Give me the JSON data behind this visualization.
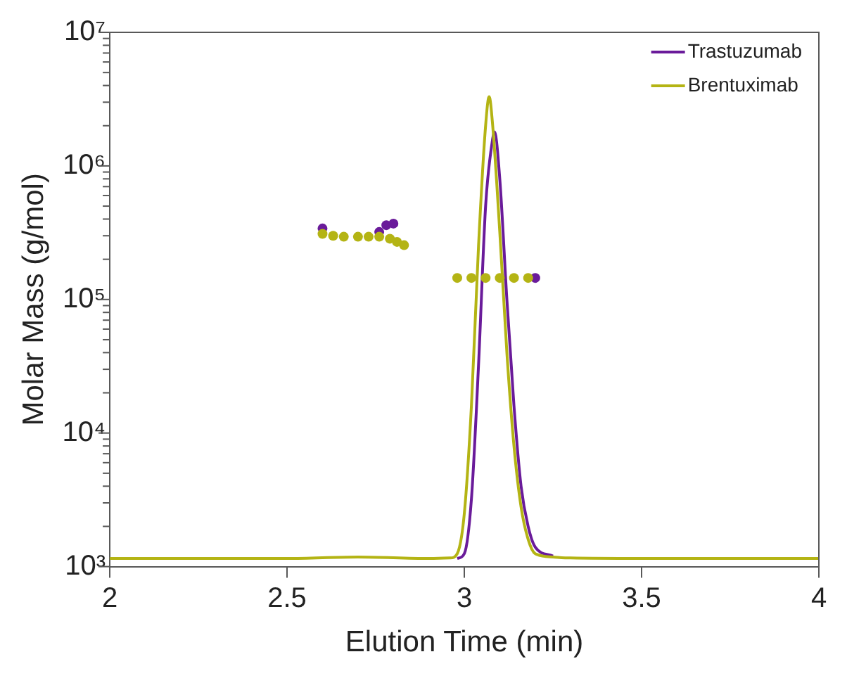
{
  "chart_data": {
    "type": "line",
    "xlabel": "Elution Time (min)",
    "ylabel": "Molar Mass (g/mol)",
    "log": "y",
    "xlim": [
      2,
      4
    ],
    "xticks": [
      2,
      2.5,
      3,
      3.5,
      4
    ],
    "ylim": [
      1000,
      10000000
    ],
    "yticks": [
      {
        "value": 1000,
        "label": "10³"
      },
      {
        "value": 2000,
        "label": null
      },
      {
        "value": 3000,
        "label": null
      },
      {
        "value": 4000,
        "label": null
      },
      {
        "value": 5000,
        "label": null
      },
      {
        "value": 6000,
        "label": null
      },
      {
        "value": 7000,
        "label": null
      },
      {
        "value": 8000,
        "label": null
      },
      {
        "value": 9000,
        "label": null
      },
      {
        "value": 10000,
        "label": "10⁴"
      },
      {
        "value": 20000,
        "label": null
      },
      {
        "value": 30000,
        "label": null
      },
      {
        "value": 40000,
        "label": null
      },
      {
        "value": 50000,
        "label": null
      },
      {
        "value": 60000,
        "label": null
      },
      {
        "value": 70000,
        "label": null
      },
      {
        "value": 80000,
        "label": null
      },
      {
        "value": 90000,
        "label": null
      },
      {
        "value": 100000,
        "label": "10⁵"
      },
      {
        "value": 200000,
        "label": null
      },
      {
        "value": 300000,
        "label": null
      },
      {
        "value": 400000,
        "label": null
      },
      {
        "value": 500000,
        "label": null
      },
      {
        "value": 600000,
        "label": null
      },
      {
        "value": 700000,
        "label": null
      },
      {
        "value": 800000,
        "label": null
      },
      {
        "value": 900000,
        "label": null
      },
      {
        "value": 1000000,
        "label": "10⁶"
      },
      {
        "value": 2000000,
        "label": null
      },
      {
        "value": 3000000,
        "label": null
      },
      {
        "value": 4000000,
        "label": null
      },
      {
        "value": 5000000,
        "label": null
      },
      {
        "value": 6000000,
        "label": null
      },
      {
        "value": 7000000,
        "label": null
      },
      {
        "value": 8000000,
        "label": null
      },
      {
        "value": 9000000,
        "label": null
      },
      {
        "value": 10000000,
        "label": "10⁷"
      }
    ],
    "grid": false,
    "legend": "top right",
    "series": [
      {
        "name": "Trastuzumab",
        "type": "line",
        "color": "#6a1b9a",
        "x": [
          2.98,
          3.0,
          3.02,
          3.04,
          3.06,
          3.08,
          3.085,
          3.1,
          3.12,
          3.14,
          3.16,
          3.18,
          3.2,
          3.25
        ],
        "values": [
          1150,
          1250,
          3200,
          32000,
          500000,
          1600000,
          1800000,
          800000,
          100000,
          16000,
          4000,
          2000,
          1400,
          1200
        ]
      },
      {
        "name": "Brentuximab",
        "type": "line",
        "color": "#b4b414",
        "x": [
          2,
          2.5,
          2.7,
          2.9,
          2.96,
          2.98,
          3.0,
          3.02,
          3.04,
          3.06,
          3.07,
          3.08,
          3.1,
          3.12,
          3.14,
          3.16,
          3.18,
          3.2,
          3.25,
          3.3,
          3.5,
          4
        ],
        "values": [
          1150,
          1150,
          1180,
          1150,
          1160,
          1250,
          2500,
          16000,
          250000,
          2000000,
          3300000,
          2000000,
          320000,
          40000,
          8000,
          2800,
          1600,
          1250,
          1180,
          1160,
          1150,
          1150
        ]
      },
      {
        "type": "scatter",
        "color": "#6a1b9a",
        "x": [
          2.6,
          2.76,
          2.78,
          2.8,
          3.2
        ],
        "values": [
          340000,
          320000,
          360000,
          370000,
          145000
        ]
      },
      {
        "type": "scatter",
        "color": "#b4b414",
        "x": [
          2.6,
          2.63,
          2.66,
          2.7,
          2.73,
          2.76,
          2.79,
          2.81,
          2.83,
          2.98,
          3.02,
          3.06,
          3.1,
          3.14,
          3.18
        ],
        "values": [
          310000,
          300000,
          295000,
          295000,
          295000,
          295000,
          285000,
          270000,
          255000,
          145000,
          145000,
          145000,
          145000,
          145000,
          145000
        ]
      }
    ]
  }
}
